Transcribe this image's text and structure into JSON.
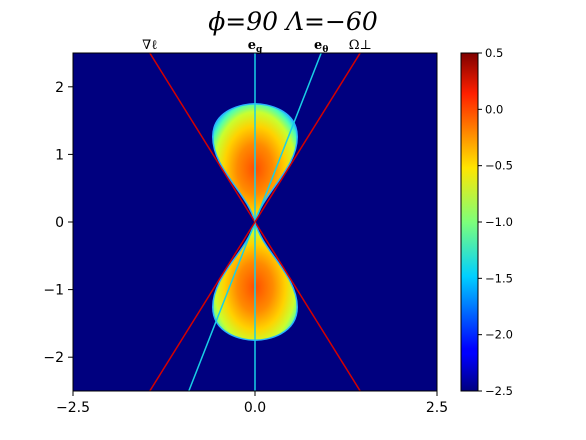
{
  "chart_data": {
    "type": "heatmap",
    "title": "ϕ=90   Λ=−60",
    "xlim": [
      -2.5,
      2.5
    ],
    "ylim": [
      -2.5,
      2.5
    ],
    "xticks": [
      -2.5,
      0.0,
      2.5
    ],
    "xtick_labels": [
      "−2.5",
      "0.0",
      "2.5"
    ],
    "yticks": [
      -2,
      -1,
      0,
      1,
      2
    ],
    "ytick_labels": [
      "−2",
      "−1",
      "0",
      "1",
      "2"
    ],
    "colorbar": {
      "colormap": "jet",
      "range": [
        -2.5,
        0.5
      ],
      "ticks": [
        0.5,
        0.0,
        -0.5,
        -1.0,
        -1.5,
        -2.0,
        -2.5
      ],
      "tick_labels": [
        "0.5",
        "0.0",
        "−0.5",
        "−1.0",
        "−1.5",
        "−2.0",
        "−2.5"
      ]
    },
    "background_value": -2.5,
    "lobe": {
      "half_height": 1.75,
      "max_half_width": 0.58,
      "core_value": -0.2,
      "edge_value": -1.7
    },
    "lines": [
      {
        "label": "∇ℓ",
        "color": "#d40000",
        "slope": -1.73
      },
      {
        "label": "e",
        "sub": "g",
        "color": "#19cfe6",
        "vertical": true
      },
      {
        "label": "e",
        "sub": "θ",
        "color": "#19cfe6",
        "slope": 2.75
      },
      {
        "label": "Ω⊥",
        "color": "#d40000",
        "slope": 1.73
      }
    ]
  }
}
